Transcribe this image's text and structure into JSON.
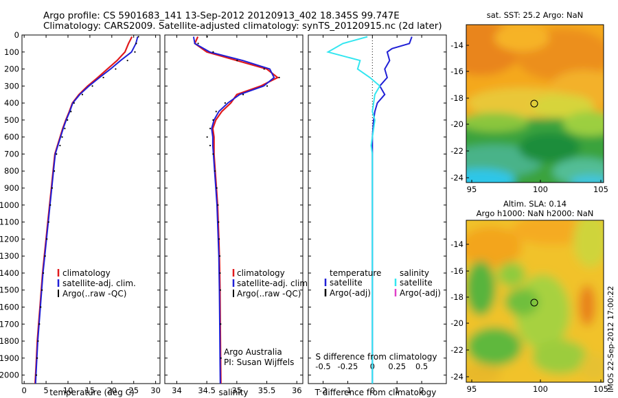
{
  "header": {
    "line1": "Argo profile: CS 5901683_141 13-Sep-2012 20120913_402 18.345S 99.747E",
    "line2": "Climatology: CARS2009. Satellite-adjusted climatology: synTS_20120915.nc (2d later)"
  },
  "colors": {
    "climatology": "#e0191c",
    "satellite": "#1f1fd6",
    "argo": "#000000",
    "salinity_satellite": "#33e6f0",
    "salinity_argo": "#e040c8"
  },
  "chart_data": [
    {
      "type": "line",
      "id": "temperature",
      "xlabel": "temperature (deg C)",
      "ylabel": "",
      "xlim": [
        -0.5,
        31
      ],
      "ylim": [
        2050,
        0
      ],
      "xticks": [
        0,
        5,
        10,
        15,
        20,
        25,
        30
      ],
      "yticks": [
        0,
        100,
        200,
        300,
        400,
        500,
        600,
        700,
        800,
        900,
        1000,
        1100,
        1200,
        1300,
        1400,
        1500,
        1600,
        1700,
        1800,
        1900,
        2000
      ],
      "legend": [
        "climatology",
        "satellite-adj. clim.",
        "Argo(..raw -QC)"
      ],
      "series": [
        {
          "name": "climatology",
          "style": "line",
          "color": "#e0191c",
          "points": [
            [
              24.6,
              10
            ],
            [
              23.8,
              50
            ],
            [
              23.0,
              100
            ],
            [
              21.2,
              150
            ],
            [
              19.0,
              200
            ],
            [
              16.8,
              250
            ],
            [
              14.5,
              300
            ],
            [
              12.5,
              350
            ],
            [
              11.0,
              400
            ],
            [
              10.3,
              450
            ],
            [
              9.5,
              500
            ],
            [
              8.8,
              550
            ],
            [
              8.2,
              600
            ],
            [
              7.6,
              650
            ],
            [
              7.0,
              700
            ],
            [
              6.6,
              800
            ],
            [
              6.2,
              900
            ],
            [
              5.8,
              1000
            ],
            [
              5.4,
              1100
            ],
            [
              5.0,
              1200
            ],
            [
              4.6,
              1300
            ],
            [
              4.2,
              1400
            ],
            [
              3.9,
              1500
            ],
            [
              3.6,
              1600
            ],
            [
              3.3,
              1700
            ],
            [
              3.0,
              1800
            ],
            [
              2.8,
              1900
            ],
            [
              2.6,
              2000
            ],
            [
              2.5,
              2050
            ]
          ]
        },
        {
          "name": "satellite-adj. clim.",
          "style": "line",
          "color": "#1f1fd6",
          "points": [
            [
              25.9,
              10
            ],
            [
              25.5,
              50
            ],
            [
              24.5,
              100
            ],
            [
              22.0,
              150
            ],
            [
              19.7,
              200
            ],
            [
              17.2,
              250
            ],
            [
              14.8,
              300
            ],
            [
              12.7,
              350
            ],
            [
              11.1,
              400
            ],
            [
              10.4,
              450
            ],
            [
              9.6,
              500
            ],
            [
              8.9,
              550
            ],
            [
              8.3,
              600
            ],
            [
              7.7,
              650
            ],
            [
              7.1,
              700
            ],
            [
              6.7,
              800
            ],
            [
              6.3,
              900
            ],
            [
              5.9,
              1000
            ],
            [
              5.5,
              1100
            ],
            [
              5.1,
              1200
            ],
            [
              4.7,
              1300
            ],
            [
              4.3,
              1400
            ],
            [
              4.0,
              1500
            ],
            [
              3.7,
              1600
            ],
            [
              3.4,
              1700
            ],
            [
              3.1,
              1800
            ],
            [
              2.9,
              1900
            ],
            [
              2.7,
              2000
            ],
            [
              2.6,
              2050
            ]
          ]
        },
        {
          "name": "Argo(..raw -QC)",
          "style": "dots",
          "color": "#000000",
          "points": [
            [
              26.0,
              10
            ],
            [
              25.5,
              50
            ],
            [
              25.2,
              100
            ],
            [
              23.5,
              150
            ],
            [
              20.8,
              200
            ],
            [
              18.0,
              250
            ],
            [
              15.5,
              300
            ],
            [
              13.2,
              350
            ],
            [
              11.3,
              400
            ],
            [
              10.6,
              450
            ],
            [
              9.8,
              500
            ],
            [
              9.2,
              550
            ],
            [
              8.6,
              600
            ],
            [
              8.1,
              650
            ],
            [
              7.3,
              700
            ],
            [
              6.8,
              800
            ],
            [
              6.3,
              900
            ],
            [
              5.9,
              1000
            ],
            [
              5.5,
              1100
            ],
            [
              5.1,
              1200
            ],
            [
              4.7,
              1300
            ],
            [
              4.3,
              1400
            ],
            [
              4.0,
              1500
            ],
            [
              3.7,
              1600
            ],
            [
              3.4,
              1700
            ],
            [
              3.1,
              1800
            ],
            [
              2.9,
              1900
            ],
            [
              2.7,
              2000
            ]
          ]
        }
      ]
    },
    {
      "type": "line",
      "id": "salinity",
      "xlabel": "salinity",
      "ylabel": "",
      "xlim": [
        33.8,
        36.1
      ],
      "ylim": [
        2050,
        0
      ],
      "xticks": [
        34,
        34.5,
        35,
        35.5,
        36
      ],
      "legend": [
        "climatology",
        "satellite-adj. clim.",
        "Argo(..raw -QC)"
      ],
      "annotations": [
        "Argo Australia",
        "PI: Susan Wijffels"
      ],
      "series": [
        {
          "name": "climatology",
          "style": "line",
          "color": "#e0191c",
          "points": [
            [
              34.35,
              10
            ],
            [
              34.3,
              50
            ],
            [
              34.5,
              100
            ],
            [
              35.0,
              150
            ],
            [
              35.5,
              200
            ],
            [
              35.68,
              250
            ],
            [
              35.4,
              300
            ],
            [
              35.0,
              350
            ],
            [
              34.9,
              400
            ],
            [
              34.75,
              450
            ],
            [
              34.65,
              500
            ],
            [
              34.6,
              550
            ],
            [
              34.62,
              600
            ],
            [
              34.62,
              650
            ],
            [
              34.62,
              700
            ],
            [
              34.64,
              800
            ],
            [
              34.66,
              900
            ],
            [
              34.68,
              1000
            ],
            [
              34.69,
              1100
            ],
            [
              34.7,
              1200
            ],
            [
              34.71,
              1300
            ],
            [
              34.715,
              1400
            ],
            [
              34.72,
              1500
            ],
            [
              34.725,
              1700
            ],
            [
              34.73,
              1900
            ],
            [
              34.735,
              2050
            ]
          ]
        },
        {
          "name": "satellite-adj. clim.",
          "style": "line",
          "color": "#1f1fd6",
          "points": [
            [
              34.28,
              10
            ],
            [
              34.3,
              50
            ],
            [
              34.55,
              100
            ],
            [
              35.1,
              150
            ],
            [
              35.55,
              200
            ],
            [
              35.62,
              250
            ],
            [
              35.45,
              300
            ],
            [
              35.05,
              350
            ],
            [
              34.85,
              400
            ],
            [
              34.7,
              450
            ],
            [
              34.62,
              500
            ],
            [
              34.58,
              550
            ],
            [
              34.6,
              600
            ],
            [
              34.6,
              650
            ],
            [
              34.61,
              700
            ],
            [
              34.63,
              800
            ],
            [
              34.65,
              900
            ],
            [
              34.67,
              1000
            ],
            [
              34.68,
              1100
            ],
            [
              34.69,
              1200
            ],
            [
              34.7,
              1300
            ],
            [
              34.705,
              1400
            ],
            [
              34.71,
              1500
            ],
            [
              34.715,
              1700
            ],
            [
              34.72,
              1900
            ],
            [
              34.725,
              2050
            ]
          ]
        },
        {
          "name": "Argo(..raw -QC)",
          "style": "dots",
          "color": "#000000",
          "points": [
            [
              34.5,
              10
            ],
            [
              34.35,
              50
            ],
            [
              34.6,
              100
            ],
            [
              35.0,
              150
            ],
            [
              35.45,
              200
            ],
            [
              35.7,
              250
            ],
            [
              35.5,
              300
            ],
            [
              35.1,
              350
            ],
            [
              34.8,
              400
            ],
            [
              34.65,
              450
            ],
            [
              34.6,
              500
            ],
            [
              34.55,
              550
            ],
            [
              34.5,
              600
            ],
            [
              34.55,
              650
            ],
            [
              34.6,
              700
            ],
            [
              34.63,
              800
            ],
            [
              34.66,
              900
            ],
            [
              34.68,
              1000
            ],
            [
              34.69,
              1100
            ],
            [
              34.7,
              1200
            ],
            [
              34.71,
              1300
            ],
            [
              34.715,
              1400
            ],
            [
              34.72,
              1500
            ],
            [
              34.725,
              1700
            ],
            [
              34.73,
              1900
            ]
          ]
        }
      ]
    },
    {
      "type": "line",
      "id": "difference",
      "xlabel": "T difference from climatology",
      "xlabel2": "S difference from climatology",
      "ylabel": "",
      "xlim": [
        -2.6,
        3.0
      ],
      "ylim": [
        2050,
        0
      ],
      "xticks": [
        -2,
        -1,
        0,
        1,
        2
      ],
      "xticklabels_top": [
        "-0.5",
        "-0.25",
        "0",
        "0.25",
        "0.5"
      ],
      "legend_temperature_title": "temperature",
      "legend_salinity_title": "salinity",
      "legend_temperature": [
        "satellite",
        "Argo(-adj)"
      ],
      "legend_salinity": [
        "satellite",
        "Argo(-adj)"
      ],
      "series": [
        {
          "name": "T satellite",
          "style": "line",
          "color": "#1f1fd6",
          "points": [
            [
              1.6,
              10
            ],
            [
              1.5,
              50
            ],
            [
              0.8,
              80
            ],
            [
              0.6,
              100
            ],
            [
              0.7,
              150
            ],
            [
              0.5,
              200
            ],
            [
              0.6,
              250
            ],
            [
              0.3,
              300
            ],
            [
              0.5,
              350
            ],
            [
              0.2,
              400
            ],
            [
              0.1,
              450
            ],
            [
              0.05,
              500
            ],
            [
              0.0,
              600
            ],
            [
              0.0,
              800
            ],
            [
              0.0,
              1000
            ],
            [
              0.0,
              1500
            ],
            [
              0.0,
              2050
            ]
          ]
        },
        {
          "name": "S satellite",
          "style": "line",
          "color": "#33e6f0",
          "points": [
            [
              -0.2,
              10
            ],
            [
              -1.2,
              50
            ],
            [
              -1.8,
              100
            ],
            [
              -0.5,
              150
            ],
            [
              -0.6,
              200
            ],
            [
              -0.1,
              250
            ],
            [
              0.3,
              300
            ],
            [
              0.1,
              350
            ],
            [
              0.05,
              400
            ],
            [
              0.0,
              450
            ],
            [
              0.1,
              500
            ],
            [
              0.0,
              600
            ],
            [
              -0.05,
              650
            ],
            [
              0.0,
              700
            ],
            [
              0.0,
              800
            ],
            [
              0.0,
              1000
            ],
            [
              0.0,
              1500
            ],
            [
              0.0,
              2050
            ]
          ]
        }
      ]
    }
  ],
  "maps": {
    "sst": {
      "title": "sat. SST: 25.2 Argo: NaN",
      "xticks": [
        "95",
        "100",
        "105"
      ],
      "yticks": [
        "-14",
        "-16",
        "-18",
        "-20",
        "-22",
        "-24"
      ]
    },
    "sla": {
      "title1": "Altim. SLA: 0.14",
      "title2": "Argo h1000: NaN h2000: NaN",
      "xticks": [
        "95",
        "100",
        "105"
      ],
      "yticks": [
        "-14",
        "-16",
        "-18",
        "-20",
        "-22",
        "-24"
      ]
    }
  },
  "footer": {
    "stamp": "IMOS 22-Sep-2012 17:00:22"
  }
}
